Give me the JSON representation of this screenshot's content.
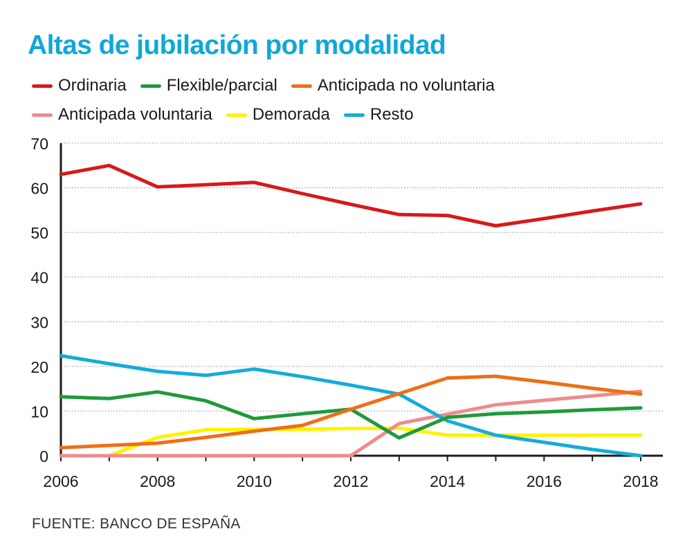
{
  "title": "Altas de jubilación por modalidad",
  "source": "FUENTE: BANCO DE ESPAÑA",
  "chart_data": {
    "type": "line",
    "title": "Altas de jubilación por modalidad",
    "x": [
      2006,
      2007,
      2008,
      2009,
      2010,
      2011,
      2012,
      2013,
      2014,
      2015,
      2016,
      2017,
      2018
    ],
    "xticks": [
      "2006",
      "2008",
      "2010",
      "2012",
      "2014",
      "2016",
      "2018"
    ],
    "yticks": [
      "0",
      "10",
      "20",
      "30",
      "40",
      "50",
      "60",
      "70"
    ],
    "ylim": [
      0,
      70
    ],
    "xlim": [
      2006,
      2018
    ],
    "grid": "horizontal dotted",
    "legend_position": "top",
    "series": [
      {
        "name": "Ordinaria",
        "color": "#d7191c",
        "values": [
          63.0,
          65.0,
          60.2,
          60.7,
          61.2,
          58.7,
          56.3,
          54.0,
          53.8,
          51.5,
          53.1,
          54.8,
          56.4
        ]
      },
      {
        "name": "Flexible/parcial",
        "color": "#1f9a3a",
        "values": [
          13.2,
          12.8,
          14.3,
          12.3,
          8.3,
          9.4,
          10.4,
          4.0,
          8.6,
          9.4,
          9.8,
          10.3,
          10.7
        ]
      },
      {
        "name": "Anticipada no voluntaria",
        "color": "#ee6f16",
        "values": [
          1.8,
          2.3,
          2.8,
          4.1,
          5.5,
          6.8,
          10.4,
          13.9,
          17.4,
          17.8,
          16.5,
          15.1,
          13.8
        ]
      },
      {
        "name": "Anticipada voluntaria",
        "color": "#ec8c8c",
        "values": [
          0,
          0,
          0,
          0,
          0,
          0,
          0,
          7.2,
          9.3,
          11.4,
          12.4,
          13.4,
          14.4
        ]
      },
      {
        "name": "Demorada",
        "color": "#fff200",
        "values": [
          0,
          0,
          4.1,
          5.8,
          5.9,
          5.9,
          6.1,
          6.2,
          4.6,
          4.6,
          4.6,
          4.6,
          4.6
        ]
      },
      {
        "name": "Resto",
        "color": "#14acd8",
        "values": [
          22.4,
          20.6,
          18.9,
          18.0,
          19.4,
          17.7,
          15.8,
          13.8,
          7.8,
          4.6,
          3.0,
          1.4,
          0
        ]
      }
    ]
  },
  "legend_rows": [
    [
      0,
      1,
      2
    ],
    [
      3,
      4,
      5
    ]
  ]
}
